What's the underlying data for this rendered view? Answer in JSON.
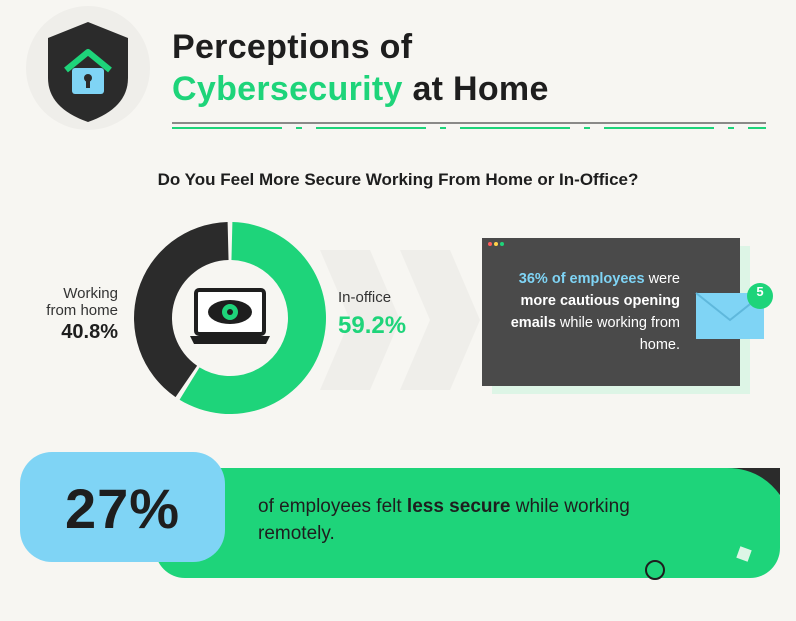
{
  "header": {
    "title_line1": "Perceptions of",
    "title_highlight": "Cybersecurity",
    "title_rest": "at Home"
  },
  "chart_data": {
    "type": "donut",
    "title": "Do You Feel More Secure Working From Home or In-Office?",
    "categories": [
      "Working from home",
      "In-office"
    ],
    "values": [
      40.8,
      59.2
    ],
    "value_labels": [
      "40.8%",
      "59.2%"
    ],
    "colors": [
      "#2b2b2b",
      "#1ed47a"
    ]
  },
  "email_card": {
    "stat": "36% of employees",
    "text1": "were",
    "bold": "more cautious opening emails",
    "text2": "while working from home.",
    "badge": "5"
  },
  "banner": {
    "stat": "27%",
    "text1": "of employees felt",
    "bold": "less secure",
    "text2": "while working remotely."
  }
}
